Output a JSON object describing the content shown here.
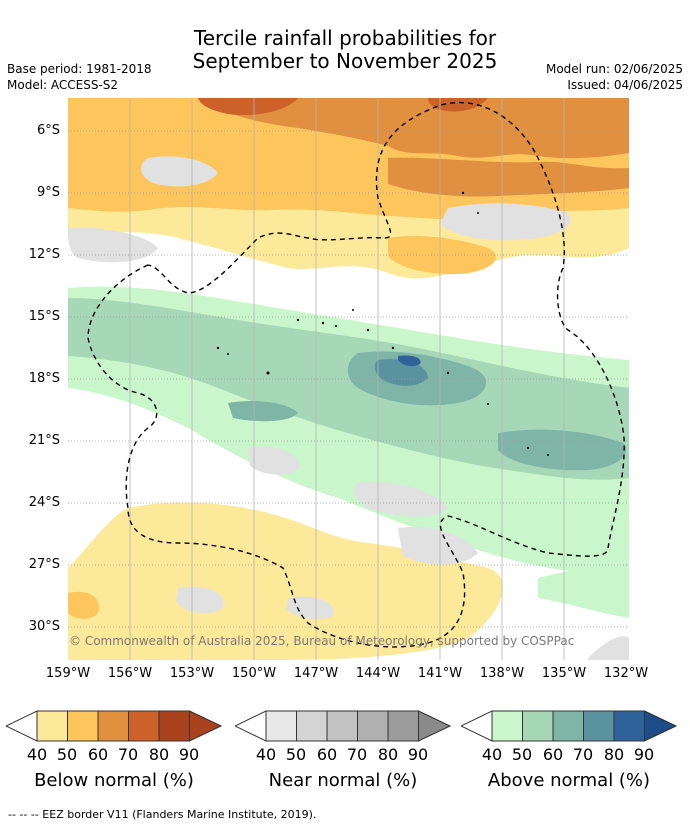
{
  "title_line1": "Tercile rainfall probabilities for",
  "title_line2": "September to November 2025",
  "base_period": "Base period: 1981-2018",
  "model": "Model: ACCESS-S2",
  "model_run": "Model run: 02/06/2025",
  "issued": "Issued: 04/06/2025",
  "lat_labels": [
    "6°S",
    "9°S",
    "12°S",
    "15°S",
    "18°S",
    "21°S",
    "24°S",
    "27°S",
    "30°S"
  ],
  "lon_labels": [
    "159°W",
    "156°W",
    "153°W",
    "150°W",
    "147°W",
    "144°W",
    "141°W",
    "138°W",
    "135°W",
    "132°W"
  ],
  "copyright": "© Commonwealth of Australia 2025, Bureau of Meteorology, supported by COSPPac",
  "colorbars": [
    {
      "title": "Below normal (%)",
      "ticks": [
        "40",
        "50",
        "60",
        "70",
        "80",
        "90"
      ],
      "colors": [
        "#fde99a",
        "#fdc65c",
        "#e0903f",
        "#cc6129",
        "#a8431e",
        "#a8431e"
      ]
    },
    {
      "title": "Near normal (%)",
      "ticks": [
        "40",
        "50",
        "60",
        "70",
        "80",
        "90"
      ],
      "colors": [
        "#e8e8e8",
        "#d4d4d4",
        "#c2c2c2",
        "#b0b0b0",
        "#9c9c9c",
        "#8a8a8a"
      ]
    },
    {
      "title": "Above normal (%)",
      "ticks": [
        "40",
        "50",
        "60",
        "70",
        "80",
        "90"
      ],
      "colors": [
        "#caf6cb",
        "#a6d8b8",
        "#7fb5a7",
        "#5a92a0",
        "#2f6299",
        "#1c4d88"
      ]
    }
  ],
  "legend": "--  --  -- EEZ border V11 (Flanders Marine Institute, 2019)."
}
